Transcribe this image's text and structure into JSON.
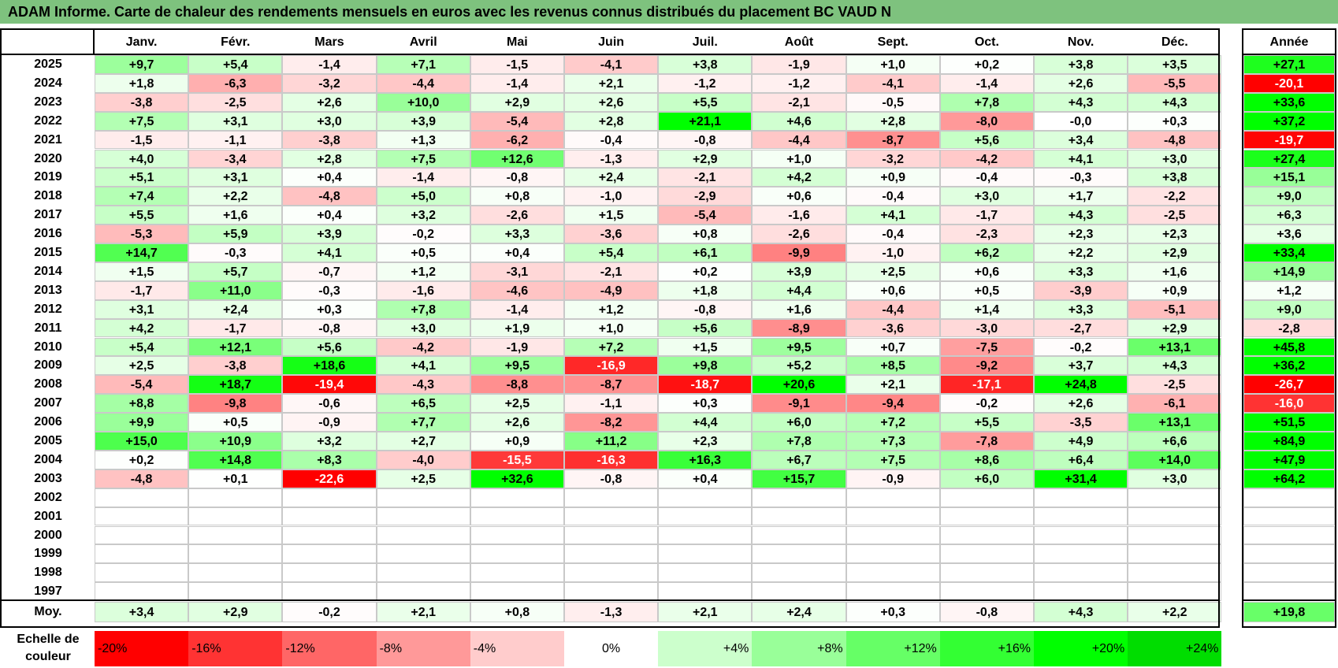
{
  "title": "ADAM Informe. Carte de chaleur des rendements mensuels en euros avec les revenus connus distribués du placement BC VAUD N",
  "chart_data": {
    "type": "heatmap",
    "months": [
      "Janv.",
      "Févr.",
      "Mars",
      "Avril",
      "Mai",
      "Juin",
      "Juil.",
      "Août",
      "Sept.",
      "Oct.",
      "Nov.",
      "Déc."
    ],
    "annual_label": "Année",
    "rows": [
      {
        "year": "2025",
        "values": [
          "+9,7",
          "+5,4",
          "-1,4",
          "+7,1",
          "-1,5",
          "-4,1",
          "+3,8",
          "-1,9",
          "+1,0",
          "+0,2",
          "+3,8",
          "+3,5"
        ],
        "annual": "+27,1"
      },
      {
        "year": "2024",
        "values": [
          "+1,8",
          "-6,3",
          "-3,2",
          "-4,4",
          "-1,4",
          "+2,1",
          "-1,2",
          "-1,2",
          "-4,1",
          "-1,4",
          "+2,6",
          "-5,5"
        ],
        "annual": "-20,1"
      },
      {
        "year": "2023",
        "values": [
          "-3,8",
          "-2,5",
          "+2,6",
          "+10,0",
          "+2,9",
          "+2,6",
          "+5,5",
          "-2,1",
          "-0,5",
          "+7,8",
          "+4,3",
          "+4,3"
        ],
        "annual": "+33,6"
      },
      {
        "year": "2022",
        "values": [
          "+7,5",
          "+3,1",
          "+3,0",
          "+3,9",
          "-5,4",
          "+2,8",
          "+21,1",
          "+4,6",
          "+2,8",
          "-8,0",
          "-0,0",
          "+0,3"
        ],
        "annual": "+37,2"
      },
      {
        "year": "2021",
        "values": [
          "-1,5",
          "-1,1",
          "-3,8",
          "+1,3",
          "-6,2",
          "-0,4",
          "-0,8",
          "-4,4",
          "-8,7",
          "+5,6",
          "+3,4",
          "-4,8"
        ],
        "annual": "-19,7"
      },
      {
        "year": "2020",
        "values": [
          "+4,0",
          "-3,4",
          "+2,8",
          "+7,5",
          "+12,6",
          "-1,3",
          "+2,9",
          "+1,0",
          "-3,2",
          "-4,2",
          "+4,1",
          "+3,0"
        ],
        "annual": "+27,4"
      },
      {
        "year": "2019",
        "values": [
          "+5,1",
          "+3,1",
          "+0,4",
          "-1,4",
          "-0,8",
          "+2,4",
          "-2,1",
          "+4,2",
          "+0,9",
          "-0,4",
          "-0,3",
          "+3,8"
        ],
        "annual": "+15,1"
      },
      {
        "year": "2018",
        "values": [
          "+7,4",
          "+2,2",
          "-4,8",
          "+5,0",
          "+0,8",
          "-1,0",
          "-2,9",
          "+0,6",
          "-0,4",
          "+3,0",
          "+1,7",
          "-2,2"
        ],
        "annual": "+9,0"
      },
      {
        "year": "2017",
        "values": [
          "+5,5",
          "+1,6",
          "+0,4",
          "+3,2",
          "-2,6",
          "+1,5",
          "-5,4",
          "-1,6",
          "+4,1",
          "-1,7",
          "+4,3",
          "-2,5"
        ],
        "annual": "+6,3"
      },
      {
        "year": "2016",
        "values": [
          "-5,3",
          "+5,9",
          "+3,9",
          "-0,2",
          "+3,3",
          "-3,6",
          "+0,8",
          "-2,6",
          "-0,4",
          "-2,3",
          "+2,3",
          "+2,3"
        ],
        "annual": "+3,6"
      },
      {
        "year": "2015",
        "values": [
          "+14,7",
          "-0,3",
          "+4,1",
          "+0,5",
          "+0,4",
          "+5,4",
          "+6,1",
          "-9,9",
          "-1,0",
          "+6,2",
          "+2,2",
          "+2,9"
        ],
        "annual": "+33,4"
      },
      {
        "year": "2014",
        "values": [
          "+1,5",
          "+5,7",
          "-0,7",
          "+1,2",
          "-3,1",
          "-2,1",
          "+0,2",
          "+3,9",
          "+2,5",
          "+0,6",
          "+3,3",
          "+1,6"
        ],
        "annual": "+14,9"
      },
      {
        "year": "2013",
        "values": [
          "-1,7",
          "+11,0",
          "-0,3",
          "-1,6",
          "-4,6",
          "-4,9",
          "+1,8",
          "+4,4",
          "+0,6",
          "+0,5",
          "-3,9",
          "+0,9"
        ],
        "annual": "+1,2"
      },
      {
        "year": "2012",
        "values": [
          "+3,1",
          "+2,4",
          "+0,3",
          "+7,8",
          "-1,4",
          "+1,2",
          "-0,8",
          "+1,6",
          "-4,4",
          "+1,4",
          "+3,3",
          "-5,1"
        ],
        "annual": "+9,0"
      },
      {
        "year": "2011",
        "values": [
          "+4,2",
          "-1,7",
          "-0,8",
          "+3,0",
          "+1,9",
          "+1,0",
          "+5,6",
          "-8,9",
          "-3,6",
          "-3,0",
          "-2,7",
          "+2,9"
        ],
        "annual": "-2,8"
      },
      {
        "year": "2010",
        "values": [
          "+5,4",
          "+12,1",
          "+5,6",
          "-4,2",
          "-1,9",
          "+7,2",
          "+1,5",
          "+9,5",
          "+0,7",
          "-7,5",
          "-0,2",
          "+13,1"
        ],
        "annual": "+45,8"
      },
      {
        "year": "2009",
        "values": [
          "+2,5",
          "-3,8",
          "+18,6",
          "+4,1",
          "+9,5",
          "-16,9",
          "+9,8",
          "+5,2",
          "+8,5",
          "-9,2",
          "+3,7",
          "+4,3"
        ],
        "annual": "+36,2"
      },
      {
        "year": "2008",
        "values": [
          "-5,4",
          "+18,7",
          "-19,4",
          "-4,3",
          "-8,8",
          "-8,7",
          "-18,7",
          "+20,6",
          "+2,1",
          "-17,1",
          "+24,8",
          "-2,5"
        ],
        "annual": "-26,7"
      },
      {
        "year": "2007",
        "values": [
          "+8,8",
          "-9,8",
          "-0,6",
          "+6,5",
          "+2,5",
          "-1,1",
          "+0,3",
          "-9,1",
          "-9,4",
          "-0,2",
          "+2,6",
          "-6,1"
        ],
        "annual": "-16,0"
      },
      {
        "year": "2006",
        "values": [
          "+9,9",
          "+0,5",
          "-0,9",
          "+7,7",
          "+2,6",
          "-8,2",
          "+4,4",
          "+6,0",
          "+7,2",
          "+5,5",
          "-3,5",
          "+13,1"
        ],
        "annual": "+51,5"
      },
      {
        "year": "2005",
        "values": [
          "+15,0",
          "+10,9",
          "+3,2",
          "+2,7",
          "+0,9",
          "+11,2",
          "+2,3",
          "+7,8",
          "+7,3",
          "-7,8",
          "+4,9",
          "+6,6"
        ],
        "annual": "+84,9"
      },
      {
        "year": "2004",
        "values": [
          "+0,2",
          "+14,8",
          "+8,3",
          "-4,0",
          "-15,5",
          "-16,3",
          "+16,3",
          "+6,7",
          "+7,5",
          "+8,6",
          "+6,4",
          "+14,0"
        ],
        "annual": "+47,9"
      },
      {
        "year": "2003",
        "values": [
          "-4,8",
          "+0,1",
          "-22,6",
          "+2,5",
          "+32,6",
          "-0,8",
          "+0,4",
          "+15,7",
          "-0,9",
          "+6,0",
          "+31,4",
          "+3,0"
        ],
        "annual": "+64,2"
      },
      {
        "year": "2002",
        "values": [
          "",
          "",
          "",
          "",
          "",
          "",
          "",
          "",
          "",
          "",
          "",
          ""
        ],
        "annual": ""
      },
      {
        "year": "2001",
        "values": [
          "",
          "",
          "",
          "",
          "",
          "",
          "",
          "",
          "",
          "",
          "",
          ""
        ],
        "annual": ""
      },
      {
        "year": "2000",
        "values": [
          "",
          "",
          "",
          "",
          "",
          "",
          "",
          "",
          "",
          "",
          "",
          ""
        ],
        "annual": ""
      },
      {
        "year": "1999",
        "values": [
          "",
          "",
          "",
          "",
          "",
          "",
          "",
          "",
          "",
          "",
          "",
          ""
        ],
        "annual": ""
      },
      {
        "year": "1998",
        "values": [
          "",
          "",
          "",
          "",
          "",
          "",
          "",
          "",
          "",
          "",
          "",
          ""
        ],
        "annual": ""
      },
      {
        "year": "1997",
        "values": [
          "",
          "",
          "",
          "",
          "",
          "",
          "",
          "",
          "",
          "",
          "",
          ""
        ],
        "annual": ""
      }
    ],
    "average": {
      "label": "Moy.",
      "values": [
        "+3,4",
        "+2,9",
        "-0,2",
        "+2,1",
        "+0,8",
        "-1,3",
        "+2,1",
        "+2,4",
        "+0,3",
        "-0,8",
        "+4,3",
        "+2,2"
      ],
      "annual": "+19,8"
    },
    "scale": {
      "label_line1": "Echelle de",
      "label_line2": "couleur",
      "stops": [
        {
          "label": "-20%",
          "value": -20,
          "color": "#ff0000"
        },
        {
          "label": "-16%",
          "value": -16,
          "color": "#ff3333"
        },
        {
          "label": "-12%",
          "value": -12,
          "color": "#ff6666"
        },
        {
          "label": "-8%",
          "value": -8,
          "color": "#ff9999"
        },
        {
          "label": "-4%",
          "value": -4,
          "color": "#ffcccc"
        },
        {
          "label": "0%",
          "value": 0,
          "color": "#ffffff"
        },
        {
          "label": "+4%",
          "value": 4,
          "color": "#ccffcc"
        },
        {
          "label": "+8%",
          "value": 8,
          "color": "#99ff99"
        },
        {
          "label": "+12%",
          "value": 12,
          "color": "#66ff66"
        },
        {
          "label": "+16%",
          "value": 16,
          "color": "#33ff33"
        },
        {
          "label": "+20%",
          "value": 20,
          "color": "#00ff00"
        },
        {
          "label": "+24%",
          "value": 24,
          "color": "#00dd00"
        }
      ]
    }
  }
}
